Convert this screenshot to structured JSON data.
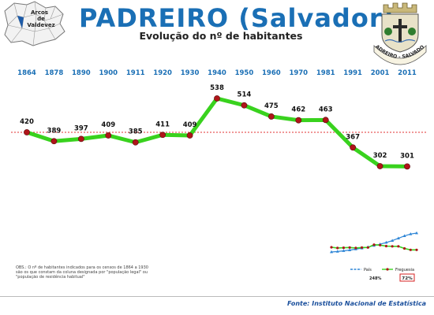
{
  "header": {
    "title": "PADREIRO (Salvador)",
    "subtitle": "Evolução do nº de habitantes"
  },
  "map": {
    "label_lines": [
      "Arcos",
      "de",
      "Valdevez"
    ]
  },
  "seal": {
    "text": "PADREIRO - SALVADOR"
  },
  "chart_data": {
    "type": "line",
    "title": "Evolução do nº de habitantes",
    "categories": [
      "1864",
      "1878",
      "1890",
      "1900",
      "1911",
      "1920",
      "1930",
      "1940",
      "1950",
      "1960",
      "1970",
      "1981",
      "1991",
      "2001",
      "2011"
    ],
    "series": [
      {
        "name": "Freguesia",
        "values": [
          420,
          389,
          397,
          409,
          385,
          411,
          409,
          538,
          514,
          475,
          462,
          463,
          367,
          302,
          301
        ]
      }
    ],
    "reference_line": 420,
    "colors": {
      "line": "#39d21e",
      "marker": "#b0151a",
      "year_label": "#1a6fb5",
      "reference": "#e03030"
    },
    "ylim": [
      250,
      560
    ],
    "grid": false
  },
  "mini_chart": {
    "legend": [
      {
        "label": "País",
        "color": "#2f86d6"
      },
      {
        "label": "Freguesia",
        "color": "#b0151a"
      }
    ],
    "pct_pais": "248%",
    "pct_freguesia": "72%",
    "pais_values": [
      0.2,
      0.22,
      0.25,
      0.28,
      0.32,
      0.36,
      0.41,
      0.47,
      0.53,
      0.6,
      0.68,
      0.78,
      0.88,
      0.96,
      1.0
    ],
    "freguesia_values": [
      0.4,
      0.37,
      0.38,
      0.39,
      0.37,
      0.39,
      0.39,
      0.51,
      0.49,
      0.45,
      0.44,
      0.44,
      0.35,
      0.29,
      0.29
    ]
  },
  "footer": {
    "note": "OBS.: O nº de habitantes indicados para os censos de 1864 a 1930 são os que constam da coluna designada por \"população legal\" ou \"população de residência habitual\"",
    "source": "Fonte: Instituto Nacional de Estatística"
  }
}
